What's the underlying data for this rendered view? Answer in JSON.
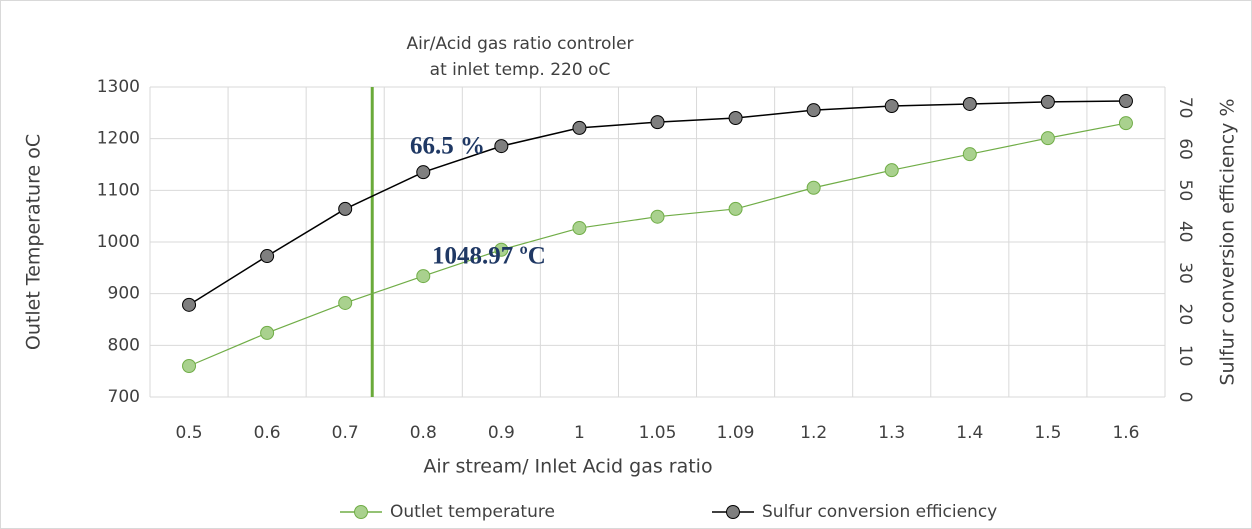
{
  "chart_data": {
    "type": "line",
    "title": "Air/Acid gas ratio controler",
    "subtitle": "at  inlet temp. 220 oC",
    "x_label": "Air stream/ Inlet Acid gas ratio",
    "y_label": "Outlet Temperature  oC",
    "y2_label": "Sulfur conversion efficiency  %",
    "categories": [
      "0.5",
      "0.6",
      "0.7",
      "0.8",
      "0.9",
      "1",
      "1.05",
      "1.09",
      "1.2",
      "1.3",
      "1.4",
      "1.5",
      "1.6"
    ],
    "series": [
      {
        "name": "Outlet temperature",
        "color": "#70ad47",
        "marker_color": "#a9d18e",
        "values": [
          760,
          824,
          882,
          934,
          985,
          1027,
          1048.97,
          1064,
          1105,
          1139,
          1170,
          1201,
          1230
        ]
      },
      {
        "name": "Sulfur conversion efficiency",
        "color": "#000000",
        "marker_color": "#7f7f7f",
        "axis": "y2",
        "values": [
          22.3,
          34.1,
          45.5,
          54.4,
          60.7,
          65.1,
          66.5,
          67.5,
          69.4,
          70.4,
          70.9,
          71.4,
          71.6
        ]
      }
    ],
    "annotations": [
      "66.5  %",
      "1048.97 ºC"
    ],
    "ylim": [
      700,
      1300
    ],
    "yticks": [
      700,
      800,
      900,
      1000,
      1100,
      1200,
      1300
    ],
    "y2lim": [
      0,
      75
    ],
    "y2ticks": [
      0,
      10,
      20,
      30,
      40,
      50,
      60,
      70
    ],
    "grid": true,
    "legend": "bottom"
  }
}
